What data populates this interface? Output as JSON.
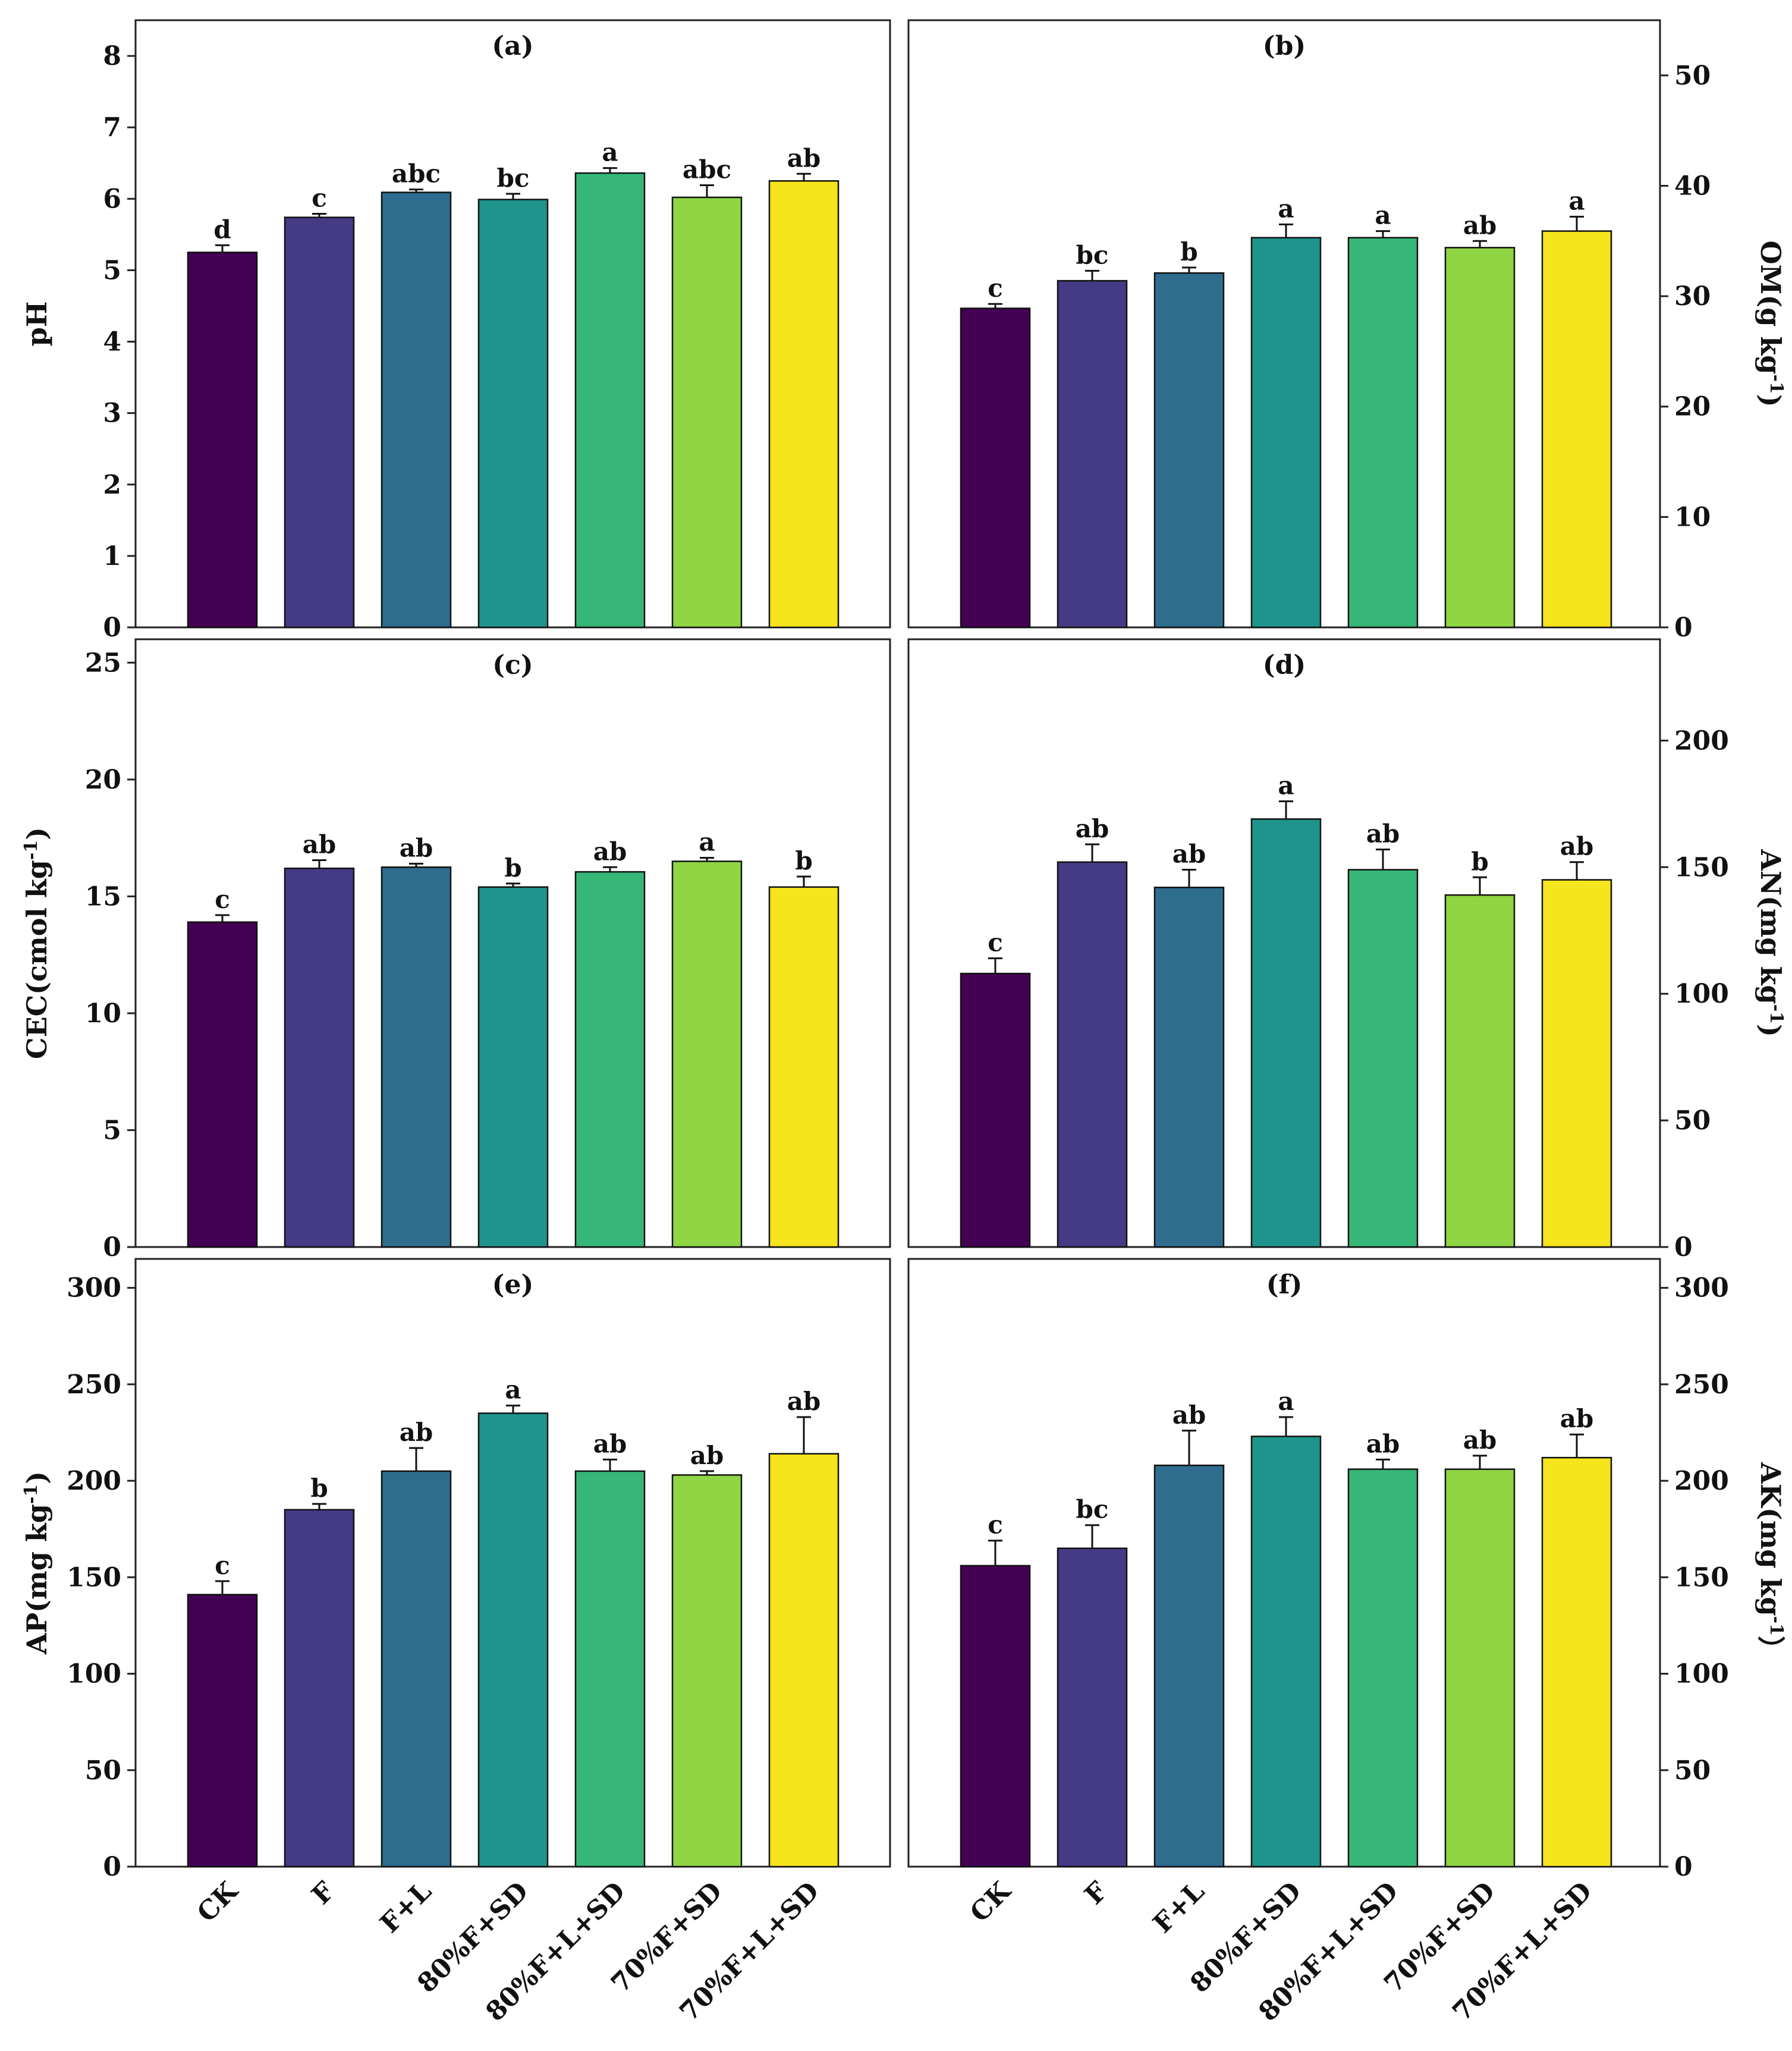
{
  "colors": [
    "#440154",
    "#443b84",
    "#2e6d8e",
    "#1f948c",
    "#36b677",
    "#8fd544",
    "#f6e41c"
  ],
  "chart_data": [
    {
      "panel": "(a)",
      "type": "bar",
      "ylabel": "pH",
      "ylim": [
        0,
        8.5
      ],
      "yticks": [
        0,
        1,
        2,
        3,
        4,
        5,
        6,
        7,
        8
      ],
      "y_axis_side": "left",
      "categories": [
        "CK",
        "F",
        "F+L",
        "80%F+SD",
        "80%F+L+SD",
        "70%F+SD",
        "70%F+L+SD"
      ],
      "values": [
        5.25,
        5.74,
        6.09,
        5.99,
        6.36,
        6.02,
        6.25
      ],
      "errors": [
        0.1,
        0.05,
        0.04,
        0.08,
        0.07,
        0.17,
        0.1
      ],
      "letters": [
        "d",
        "c",
        "abc",
        "bc",
        "a",
        "abc",
        "ab"
      ],
      "show_category_labels": false
    },
    {
      "panel": "(b)",
      "type": "bar",
      "ylabel": "OM(g kg",
      "ylabel_sup": "-1",
      "ylabel_end": ")",
      "ylim": [
        0,
        55
      ],
      "yticks": [
        0,
        10,
        20,
        30,
        40,
        50
      ],
      "y_axis_side": "right",
      "categories": [
        "CK",
        "F",
        "F+L",
        "80%F+SD",
        "80%F+L+SD",
        "70%F+SD",
        "70%F+L+SD"
      ],
      "values": [
        28.9,
        31.4,
        32.1,
        35.3,
        35.3,
        34.4,
        35.9
      ],
      "errors": [
        0.4,
        0.9,
        0.5,
        1.2,
        0.6,
        0.6,
        1.3
      ],
      "letters": [
        "c",
        "bc",
        "b",
        "a",
        "a",
        "ab",
        "a"
      ],
      "show_category_labels": false
    },
    {
      "panel": "(c)",
      "type": "bar",
      "ylabel": "CEC(cmol kg",
      "ylabel_sup": "-1",
      "ylabel_end": ")",
      "ylim": [
        0,
        26
      ],
      "yticks": [
        0,
        5,
        10,
        15,
        20,
        25
      ],
      "y_axis_side": "left",
      "categories": [
        "CK",
        "F",
        "F+L",
        "80%F+SD",
        "80%F+L+SD",
        "70%F+SD",
        "70%F+L+SD"
      ],
      "values": [
        13.9,
        16.2,
        16.25,
        15.4,
        16.05,
        16.5,
        15.4
      ],
      "errors": [
        0.3,
        0.35,
        0.15,
        0.15,
        0.2,
        0.15,
        0.45
      ],
      "letters": [
        "c",
        "ab",
        "ab",
        "b",
        "ab",
        "a",
        "b"
      ],
      "show_category_labels": false
    },
    {
      "panel": "(d)",
      "type": "bar",
      "ylabel": "AN(mg kg",
      "ylabel_sup": "-1",
      "ylabel_end": ")",
      "ylim": [
        0,
        240
      ],
      "yticks": [
        0,
        50,
        100,
        150,
        200
      ],
      "y_axis_side": "right",
      "categories": [
        "CK",
        "F",
        "F+L",
        "80%F+SD",
        "80%F+L+SD",
        "70%F+SD",
        "70%F+L+SD"
      ],
      "values": [
        108,
        152,
        142,
        169,
        149,
        139,
        145
      ],
      "errors": [
        6,
        7,
        7,
        7,
        8,
        7,
        7
      ],
      "letters": [
        "c",
        "ab",
        "ab",
        "a",
        "ab",
        "b",
        "ab"
      ],
      "show_category_labels": false
    },
    {
      "panel": "(e)",
      "type": "bar",
      "ylabel": "AP(mg kg",
      "ylabel_sup": "-1",
      "ylabel_end": ")",
      "ylim": [
        0,
        315
      ],
      "yticks": [
        0,
        50,
        100,
        150,
        200,
        250,
        300
      ],
      "y_axis_side": "left",
      "categories": [
        "CK",
        "F",
        "F+L",
        "80%F+SD",
        "80%F+L+SD",
        "70%F+SD",
        "70%F+L+SD"
      ],
      "values": [
        141,
        185,
        205,
        235,
        205,
        203,
        214
      ],
      "errors": [
        7,
        3,
        12,
        4,
        6,
        2,
        19
      ],
      "letters": [
        "c",
        "b",
        "ab",
        "a",
        "ab",
        "ab",
        "ab"
      ],
      "show_category_labels": true
    },
    {
      "panel": "(f)",
      "type": "bar",
      "ylabel": "AK(mg kg",
      "ylabel_sup": "-1",
      "ylabel_end": "）",
      "ylim": [
        0,
        315
      ],
      "yticks": [
        0,
        50,
        100,
        150,
        200,
        250,
        300
      ],
      "y_axis_side": "right",
      "categories": [
        "CK",
        "F",
        "F+L",
        "80%F+SD",
        "80%F+L+SD",
        "70%F+SD",
        "70%F+L+SD"
      ],
      "values": [
        156,
        165,
        208,
        223,
        206,
        206,
        212
      ],
      "errors": [
        13,
        12,
        18,
        10,
        5,
        7,
        12
      ],
      "letters": [
        "c",
        "bc",
        "ab",
        "a",
        "ab",
        "ab",
        "ab"
      ],
      "show_category_labels": true
    }
  ]
}
